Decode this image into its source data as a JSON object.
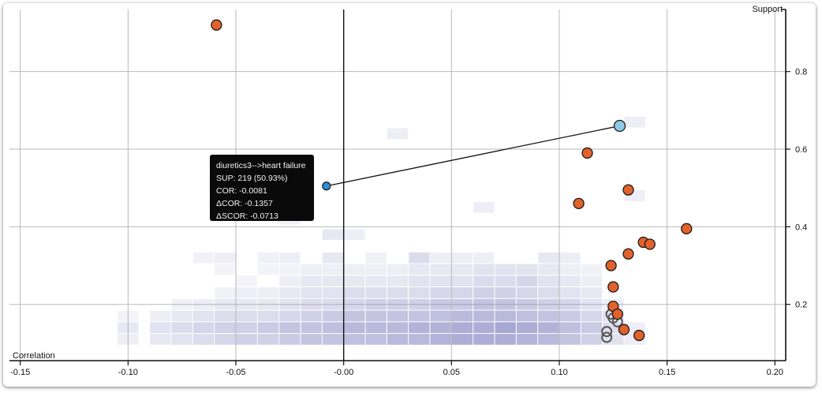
{
  "chart_data": {
    "type": "scatter",
    "xlabel": "Correlation",
    "ylabel": "Support",
    "xlim": [
      -0.155,
      0.205
    ],
    "ylim": [
      0.055,
      0.96
    ],
    "x_ticks": [
      "-0.15",
      "-0.10",
      "-0.05",
      "-0.00",
      "0.05",
      "0.10",
      "0.15",
      "0.20"
    ],
    "x_tick_values": [
      -0.15,
      -0.1,
      -0.05,
      0.0,
      0.05,
      0.1,
      0.15,
      0.2
    ],
    "y_ticks": [
      "0.2",
      "0.4",
      "0.6",
      "0.8"
    ],
    "y_tick_values": [
      0.2,
      0.4,
      0.6,
      0.8
    ],
    "grid": true,
    "colors": {
      "rule": "#e1622a",
      "highlight": "#8ec8e6",
      "highlight_small": "#2f8fd2",
      "density": "#8a8ac4",
      "hollow": "#555555"
    },
    "density_cells": [
      [
        -0.1,
        0.11,
        0.15
      ],
      [
        -0.1,
        0.14,
        0.2
      ],
      [
        -0.1,
        0.17,
        0.1
      ],
      [
        -0.085,
        0.11,
        0.2
      ],
      [
        -0.085,
        0.14,
        0.25
      ],
      [
        -0.085,
        0.17,
        0.15
      ],
      [
        -0.075,
        0.11,
        0.25
      ],
      [
        -0.075,
        0.14,
        0.3
      ],
      [
        -0.075,
        0.17,
        0.2
      ],
      [
        -0.075,
        0.2,
        0.12
      ],
      [
        -0.065,
        0.11,
        0.3
      ],
      [
        -0.065,
        0.14,
        0.35
      ],
      [
        -0.065,
        0.17,
        0.25
      ],
      [
        -0.065,
        0.2,
        0.15
      ],
      [
        -0.065,
        0.32,
        0.12
      ],
      [
        -0.055,
        0.11,
        0.35
      ],
      [
        -0.055,
        0.14,
        0.4
      ],
      [
        -0.055,
        0.17,
        0.3
      ],
      [
        -0.055,
        0.2,
        0.2
      ],
      [
        -0.055,
        0.23,
        0.12
      ],
      [
        -0.055,
        0.29,
        0.1
      ],
      [
        -0.055,
        0.32,
        0.15
      ],
      [
        -0.045,
        0.11,
        0.4
      ],
      [
        -0.045,
        0.14,
        0.4
      ],
      [
        -0.045,
        0.17,
        0.3
      ],
      [
        -0.045,
        0.2,
        0.2
      ],
      [
        -0.045,
        0.23,
        0.15
      ],
      [
        -0.045,
        0.26,
        0.1
      ],
      [
        -0.035,
        0.11,
        0.4
      ],
      [
        -0.035,
        0.14,
        0.45
      ],
      [
        -0.035,
        0.17,
        0.3
      ],
      [
        -0.035,
        0.2,
        0.2
      ],
      [
        -0.035,
        0.23,
        0.15
      ],
      [
        -0.035,
        0.29,
        0.1
      ],
      [
        -0.035,
        0.32,
        0.12
      ],
      [
        -0.025,
        0.11,
        0.45
      ],
      [
        -0.025,
        0.14,
        0.5
      ],
      [
        -0.025,
        0.17,
        0.35
      ],
      [
        -0.025,
        0.2,
        0.25
      ],
      [
        -0.025,
        0.23,
        0.2
      ],
      [
        -0.025,
        0.26,
        0.15
      ],
      [
        -0.025,
        0.29,
        0.1
      ],
      [
        -0.025,
        0.32,
        0.15
      ],
      [
        -0.025,
        0.42,
        0.12
      ],
      [
        -0.015,
        0.11,
        0.5
      ],
      [
        -0.015,
        0.14,
        0.5
      ],
      [
        -0.015,
        0.17,
        0.4
      ],
      [
        -0.015,
        0.2,
        0.3
      ],
      [
        -0.015,
        0.23,
        0.25
      ],
      [
        -0.015,
        0.26,
        0.2
      ],
      [
        -0.015,
        0.29,
        0.15
      ],
      [
        -0.005,
        0.11,
        0.5
      ],
      [
        -0.005,
        0.14,
        0.55
      ],
      [
        -0.005,
        0.17,
        0.45
      ],
      [
        -0.005,
        0.2,
        0.3
      ],
      [
        -0.005,
        0.23,
        0.25
      ],
      [
        -0.005,
        0.26,
        0.2
      ],
      [
        -0.005,
        0.29,
        0.15
      ],
      [
        -0.005,
        0.32,
        0.2
      ],
      [
        -0.005,
        0.38,
        0.2
      ],
      [
        0.005,
        0.11,
        0.55
      ],
      [
        0.005,
        0.14,
        0.6
      ],
      [
        0.005,
        0.17,
        0.5
      ],
      [
        0.005,
        0.2,
        0.35
      ],
      [
        0.005,
        0.23,
        0.3
      ],
      [
        0.005,
        0.26,
        0.2
      ],
      [
        0.005,
        0.29,
        0.15
      ],
      [
        0.005,
        0.38,
        0.15
      ],
      [
        0.015,
        0.11,
        0.55
      ],
      [
        0.015,
        0.14,
        0.6
      ],
      [
        0.015,
        0.17,
        0.5
      ],
      [
        0.015,
        0.2,
        0.4
      ],
      [
        0.015,
        0.23,
        0.3
      ],
      [
        0.015,
        0.26,
        0.2
      ],
      [
        0.015,
        0.29,
        0.15
      ],
      [
        0.015,
        0.32,
        0.12
      ],
      [
        0.025,
        0.11,
        0.6
      ],
      [
        0.025,
        0.14,
        0.6
      ],
      [
        0.025,
        0.17,
        0.5
      ],
      [
        0.025,
        0.2,
        0.4
      ],
      [
        0.025,
        0.23,
        0.3
      ],
      [
        0.025,
        0.26,
        0.2
      ],
      [
        0.025,
        0.29,
        0.15
      ],
      [
        0.025,
        0.64,
        0.15
      ],
      [
        0.035,
        0.11,
        0.6
      ],
      [
        0.035,
        0.14,
        0.65
      ],
      [
        0.035,
        0.17,
        0.5
      ],
      [
        0.035,
        0.2,
        0.4
      ],
      [
        0.035,
        0.23,
        0.3
      ],
      [
        0.035,
        0.26,
        0.25
      ],
      [
        0.035,
        0.29,
        0.2
      ],
      [
        0.035,
        0.32,
        0.3
      ],
      [
        0.045,
        0.11,
        0.65
      ],
      [
        0.045,
        0.14,
        0.65
      ],
      [
        0.045,
        0.17,
        0.55
      ],
      [
        0.045,
        0.2,
        0.45
      ],
      [
        0.045,
        0.23,
        0.35
      ],
      [
        0.045,
        0.26,
        0.25
      ],
      [
        0.045,
        0.29,
        0.2
      ],
      [
        0.045,
        0.32,
        0.15
      ],
      [
        0.055,
        0.11,
        0.7
      ],
      [
        0.055,
        0.14,
        0.7
      ],
      [
        0.055,
        0.17,
        0.6
      ],
      [
        0.055,
        0.2,
        0.45
      ],
      [
        0.055,
        0.23,
        0.35
      ],
      [
        0.055,
        0.26,
        0.25
      ],
      [
        0.055,
        0.29,
        0.2
      ],
      [
        0.055,
        0.32,
        0.15
      ],
      [
        0.065,
        0.11,
        0.7
      ],
      [
        0.065,
        0.14,
        0.7
      ],
      [
        0.065,
        0.17,
        0.6
      ],
      [
        0.065,
        0.2,
        0.5
      ],
      [
        0.065,
        0.23,
        0.4
      ],
      [
        0.065,
        0.26,
        0.3
      ],
      [
        0.065,
        0.29,
        0.25
      ],
      [
        0.065,
        0.32,
        0.15
      ],
      [
        0.065,
        0.45,
        0.15
      ],
      [
        0.075,
        0.11,
        0.7
      ],
      [
        0.075,
        0.14,
        0.75
      ],
      [
        0.075,
        0.17,
        0.6
      ],
      [
        0.075,
        0.2,
        0.5
      ],
      [
        0.075,
        0.23,
        0.4
      ],
      [
        0.075,
        0.26,
        0.3
      ],
      [
        0.075,
        0.29,
        0.25
      ],
      [
        0.085,
        0.11,
        0.65
      ],
      [
        0.085,
        0.14,
        0.7
      ],
      [
        0.085,
        0.17,
        0.55
      ],
      [
        0.085,
        0.2,
        0.45
      ],
      [
        0.085,
        0.23,
        0.35
      ],
      [
        0.085,
        0.26,
        0.35
      ],
      [
        0.085,
        0.29,
        0.25
      ],
      [
        0.095,
        0.11,
        0.6
      ],
      [
        0.095,
        0.14,
        0.65
      ],
      [
        0.095,
        0.17,
        0.5
      ],
      [
        0.095,
        0.2,
        0.4
      ],
      [
        0.095,
        0.23,
        0.3
      ],
      [
        0.095,
        0.26,
        0.25
      ],
      [
        0.095,
        0.29,
        0.2
      ],
      [
        0.095,
        0.32,
        0.2
      ],
      [
        0.105,
        0.11,
        0.5
      ],
      [
        0.105,
        0.14,
        0.55
      ],
      [
        0.105,
        0.17,
        0.45
      ],
      [
        0.105,
        0.2,
        0.35
      ],
      [
        0.105,
        0.23,
        0.25
      ],
      [
        0.105,
        0.26,
        0.2
      ],
      [
        0.105,
        0.29,
        0.15
      ],
      [
        0.105,
        0.32,
        0.15
      ],
      [
        0.115,
        0.11,
        0.4
      ],
      [
        0.115,
        0.14,
        0.45
      ],
      [
        0.115,
        0.17,
        0.35
      ],
      [
        0.115,
        0.2,
        0.25
      ],
      [
        0.115,
        0.23,
        0.2
      ],
      [
        0.115,
        0.26,
        0.15
      ],
      [
        0.115,
        0.29,
        0.12
      ],
      [
        0.125,
        0.11,
        0.25
      ],
      [
        0.125,
        0.14,
        0.3
      ],
      [
        0.125,
        0.17,
        0.25
      ],
      [
        0.125,
        0.2,
        0.15
      ],
      [
        0.135,
        0.11,
        0.15
      ],
      [
        0.135,
        0.14,
        0.15
      ],
      [
        0.135,
        0.48,
        0.15
      ],
      [
        0.135,
        0.67,
        0.15
      ]
    ],
    "series": [
      {
        "name": "rules",
        "points": [
          [
            -0.059,
            0.92
          ],
          [
            0.113,
            0.59
          ],
          [
            0.132,
            0.495
          ],
          [
            0.109,
            0.46
          ],
          [
            0.159,
            0.395
          ],
          [
            0.139,
            0.36
          ],
          [
            0.142,
            0.355
          ],
          [
            0.132,
            0.33
          ],
          [
            0.124,
            0.3
          ],
          [
            0.125,
            0.245
          ],
          [
            0.125,
            0.195
          ],
          [
            0.127,
            0.175
          ],
          [
            0.13,
            0.135
          ],
          [
            0.137,
            0.12
          ]
        ]
      },
      {
        "name": "hollow",
        "points": [
          [
            0.124,
            0.175
          ],
          [
            0.125,
            0.165
          ],
          [
            0.127,
            0.155
          ],
          [
            0.122,
            0.13
          ],
          [
            0.122,
            0.115
          ]
        ]
      }
    ],
    "highlight": {
      "from": [
        -0.008,
        0.505
      ],
      "to": [
        0.128,
        0.66
      ]
    },
    "tooltip": {
      "lines": [
        "diuretics3-->heart failure",
        "SUP: 219 (50.93%)",
        "COR: -0.0081",
        "ΔCOR: -0.1357",
        "ΔSCOR: -0.0713"
      ]
    }
  }
}
